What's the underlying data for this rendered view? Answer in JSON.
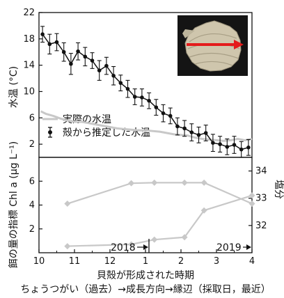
{
  "chart_data": [
    {
      "type": "line",
      "panel": "upper",
      "ylabel": "水温 (°C)",
      "ylim": [
        0,
        22
      ],
      "yticks": [
        2,
        6,
        10,
        14,
        18,
        22
      ],
      "series": [
        {
          "name": "実際の水温",
          "color": "#c8c8c8",
          "x": [
            10.05,
            10.2,
            10.4,
            10.6,
            10.8,
            11.0,
            11.2,
            11.4,
            11.6,
            11.8,
            12.0,
            12.2,
            12.4,
            12.6,
            12.8,
            1.0,
            1.2,
            1.4,
            1.6,
            1.8,
            2.0,
            2.2,
            2.4,
            2.6,
            2.8,
            3.0,
            3.2,
            3.4,
            3.6,
            3.8,
            4.0
          ],
          "values": [
            7.0,
            6.6,
            6.3,
            5.9,
            5.6,
            5.4,
            5.4,
            5.2,
            5.0,
            4.8,
            4.6,
            4.4,
            4.3,
            4.2,
            4.1,
            4.1,
            4.0,
            3.9,
            3.7,
            3.5,
            3.4,
            3.3,
            3.0,
            2.8,
            2.7,
            2.6,
            2.5,
            2.6,
            2.8,
            2.6,
            2.8
          ]
        },
        {
          "name": "殻から推定した水温",
          "color": "#111111",
          "x": [
            10.1,
            10.3,
            10.5,
            10.7,
            10.9,
            11.1,
            11.3,
            11.5,
            11.7,
            11.9,
            12.1,
            12.3,
            12.5,
            12.7,
            12.9,
            1.1,
            1.3,
            1.5,
            1.7,
            1.9,
            2.1,
            2.3,
            2.5,
            2.7,
            2.9,
            3.1,
            3.3,
            3.5,
            3.7,
            3.9
          ],
          "values": [
            18.7,
            17.2,
            17.5,
            16.0,
            14.2,
            16.1,
            15.3,
            14.7,
            13.2,
            13.9,
            12.4,
            11.3,
            10.4,
            9.2,
            9.1,
            8.6,
            7.6,
            6.7,
            6.3,
            4.7,
            4.4,
            3.8,
            3.4,
            3.7,
            2.2,
            2.0,
            1.6,
            1.9,
            1.2,
            1.5
          ],
          "err": [
            1.2,
            1.5,
            1.3,
            1.4,
            1.6,
            1.3,
            1.4,
            1.2,
            1.5,
            1.3,
            1.4,
            1.2,
            1.3,
            1.2,
            1.3,
            1.2,
            1.2,
            1.3,
            1.2,
            1.3,
            1.2,
            1.3,
            1.2,
            1.2,
            1.3,
            1.2,
            1.2,
            1.3,
            1.2,
            1.2
          ]
        }
      ]
    },
    {
      "type": "line",
      "panel": "lower",
      "ylabel": "餌の量の指標 Chl a (μg L⁻¹)",
      "ylabel_right": "塩分",
      "ylim": [
        0,
        8
      ],
      "yticks": [
        2,
        4,
        6
      ],
      "ylim_right": [
        31,
        34.5
      ],
      "yticks_right": [
        32,
        33,
        34
      ],
      "xlabel": "貝殻が形成された時期",
      "xticks": [
        "10",
        "11",
        "12",
        "1",
        "2",
        "3",
        "4"
      ],
      "series": [
        {
          "axis": "right",
          "color": "#c8c8c8",
          "marker": "diamond",
          "x": [
            10.8,
            12.6,
            1.25,
            2.1,
            2.65,
            4.0
          ],
          "values": [
            32.8,
            33.55,
            33.57,
            33.57,
            33.57,
            32.8
          ]
        },
        {
          "axis": "left",
          "color": "#c8c8c8",
          "marker": "diamond",
          "x": [
            10.8,
            12.6,
            1.25,
            2.1,
            2.65,
            4.0
          ],
          "values": [
            0.55,
            0.7,
            1.1,
            1.3,
            3.55,
            4.8
          ]
        }
      ]
    }
  ],
  "year_marks": {
    "y2018": "2018",
    "y2019": "2019"
  },
  "xlabel": "貝殻が形成された時期",
  "caption": "ちょうつがい（過去）→成長方向→縁辺（採取日，最近）"
}
